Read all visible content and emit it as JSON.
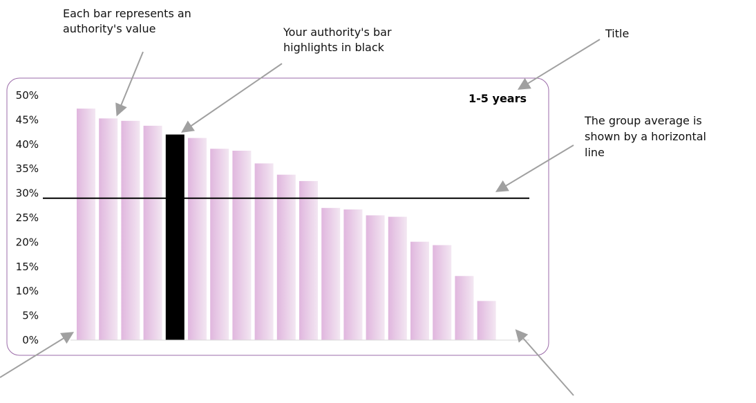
{
  "annotations": {
    "bars_note_line1": "Each bar represents an",
    "bars_note_line2": "authority's value",
    "highlight_note_line1": "Your authority's bar",
    "highlight_note_line2": "highlights in black",
    "title_note": "Title",
    "average_note_line1": "The group average is",
    "average_note_line2": "shown by a horizontal",
    "average_note_line3": "line"
  },
  "colors": {
    "bar_gradient_start": "#e0b6de",
    "bar_gradient_end": "#f3e7f2",
    "highlight_bar": "#000000",
    "frame_border": "#9a6aa8",
    "average_line": "#000000",
    "arrow": "#a0a0a0"
  },
  "chart_data": {
    "type": "bar",
    "title": "1-5 years",
    "xlabel": "",
    "ylabel": "",
    "ylim": [
      0,
      50
    ],
    "y_ticks": [
      "0%",
      "5%",
      "10%",
      "15%",
      "20%",
      "25%",
      "30%",
      "35%",
      "40%",
      "45%",
      "50%"
    ],
    "y_tick_values": [
      0,
      5,
      10,
      15,
      20,
      25,
      30,
      35,
      40,
      45,
      50
    ],
    "values": [
      47.3,
      45.3,
      44.8,
      43.8,
      42.0,
      41.3,
      39.1,
      38.7,
      36.1,
      33.8,
      32.5,
      27.0,
      26.7,
      25.5,
      25.2,
      20.1,
      19.4,
      13.1,
      8.0
    ],
    "highlight_index": 4,
    "group_average": 29.0,
    "grid": false
  }
}
